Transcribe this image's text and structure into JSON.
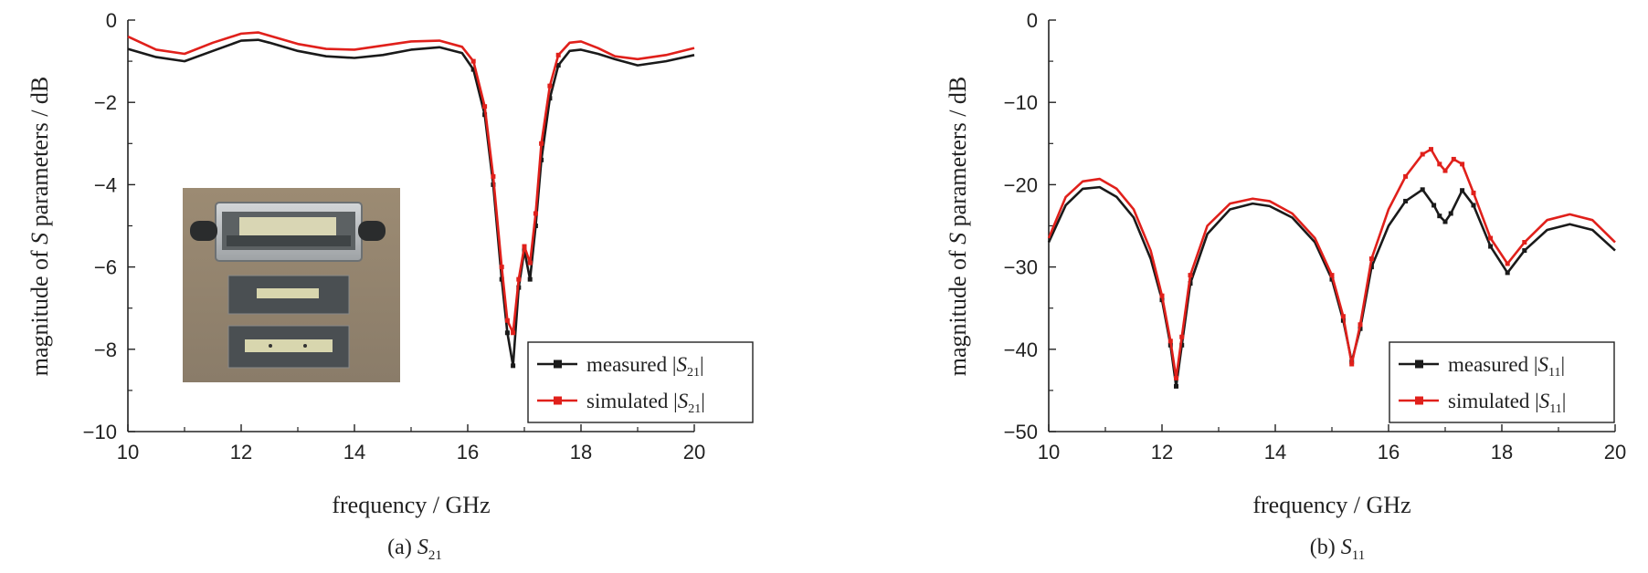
{
  "chart_data": [
    {
      "type": "line",
      "caption_prefix": "(a) ",
      "caption_symbol": "S",
      "caption_sub": "21",
      "xlabel": "frequency / GHz",
      "ylabel_prefix": "magnitude of ",
      "ylabel_symbol": "S",
      "ylabel_suffix": " parameters / dB",
      "xlim": [
        10,
        20
      ],
      "ylim": [
        -10,
        0
      ],
      "xticks": [
        10,
        12,
        14,
        16,
        18,
        20
      ],
      "yticks": [
        0,
        -2,
        -4,
        -6,
        -8,
        -10
      ],
      "legend_position": "bottom-right",
      "inset_photo": true,
      "series": [
        {
          "name": "measured |S21|",
          "name_prefix": "measured |",
          "name_symbol": "S",
          "name_sub": "21",
          "name_suffix": "|",
          "color": "#1a1a1a",
          "x": [
            10.0,
            10.5,
            11.0,
            11.5,
            12.0,
            12.3,
            12.5,
            13.0,
            13.5,
            14.0,
            14.5,
            15.0,
            15.5,
            15.9,
            16.1,
            16.3,
            16.45,
            16.6,
            16.7,
            16.8,
            16.9,
            17.0,
            17.1,
            17.2,
            17.3,
            17.45,
            17.6,
            17.8,
            18.0,
            18.3,
            18.6,
            19.0,
            19.5,
            20.0
          ],
          "y": [
            -0.7,
            -0.9,
            -1.0,
            -0.75,
            -0.5,
            -0.48,
            -0.55,
            -0.75,
            -0.88,
            -0.92,
            -0.85,
            -0.72,
            -0.66,
            -0.8,
            -1.2,
            -2.3,
            -4.0,
            -6.3,
            -7.6,
            -8.4,
            -6.5,
            -5.6,
            -6.3,
            -5.0,
            -3.4,
            -1.9,
            -1.1,
            -0.75,
            -0.72,
            -0.82,
            -0.95,
            -1.1,
            -1.0,
            -0.85
          ]
        },
        {
          "name": "simulated |S21|",
          "name_prefix": "simulated |",
          "name_symbol": "S",
          "name_sub": "21",
          "name_suffix": "|",
          "color": "#e0201b",
          "x": [
            10.0,
            10.5,
            11.0,
            11.5,
            12.0,
            12.3,
            12.5,
            13.0,
            13.5,
            14.0,
            14.5,
            15.0,
            15.5,
            15.9,
            16.1,
            16.3,
            16.45,
            16.6,
            16.7,
            16.8,
            16.9,
            17.0,
            17.1,
            17.2,
            17.3,
            17.45,
            17.6,
            17.8,
            18.0,
            18.3,
            18.6,
            19.0,
            19.5,
            20.0
          ],
          "y": [
            -0.4,
            -0.72,
            -0.82,
            -0.55,
            -0.33,
            -0.3,
            -0.38,
            -0.58,
            -0.7,
            -0.72,
            -0.62,
            -0.52,
            -0.5,
            -0.65,
            -1.0,
            -2.1,
            -3.8,
            -6.0,
            -7.3,
            -7.6,
            -6.3,
            -5.5,
            -5.9,
            -4.7,
            -3.0,
            -1.6,
            -0.85,
            -0.55,
            -0.52,
            -0.68,
            -0.88,
            -0.95,
            -0.85,
            -0.68
          ]
        }
      ]
    },
    {
      "type": "line",
      "caption_prefix": "(b) ",
      "caption_symbol": "S",
      "caption_sub": "11",
      "xlabel": "frequency / GHz",
      "ylabel_prefix": "magnitude of ",
      "ylabel_symbol": "S",
      "ylabel_suffix": " parameters / dB",
      "xlim": [
        10,
        20
      ],
      "ylim": [
        -50,
        0
      ],
      "xticks": [
        10,
        12,
        14,
        16,
        18,
        20
      ],
      "yticks": [
        0,
        -10,
        -20,
        -30,
        -40,
        -50
      ],
      "legend_position": "bottom-right",
      "series": [
        {
          "name": "measured |S11|",
          "name_prefix": "measured |",
          "name_symbol": "S",
          "name_sub": "11",
          "name_suffix": "|",
          "color": "#1a1a1a",
          "x": [
            10.0,
            10.3,
            10.6,
            10.9,
            11.2,
            11.5,
            11.8,
            12.0,
            12.15,
            12.25,
            12.35,
            12.5,
            12.8,
            13.2,
            13.6,
            13.9,
            14.3,
            14.7,
            15.0,
            15.2,
            15.35,
            15.5,
            15.7,
            16.0,
            16.3,
            16.6,
            16.8,
            16.9,
            17.0,
            17.1,
            17.3,
            17.5,
            17.8,
            18.1,
            18.4,
            18.8,
            19.2,
            19.6,
            20.0
          ],
          "y": [
            -27.0,
            -22.5,
            -20.5,
            -20.3,
            -21.5,
            -24.0,
            -29.0,
            -34.0,
            -39.5,
            -44.5,
            -39.5,
            -32.0,
            -26.0,
            -23.0,
            -22.3,
            -22.6,
            -24.0,
            -27.0,
            -31.5,
            -36.5,
            -41.5,
            -37.5,
            -30.0,
            -25.0,
            -22.0,
            -20.6,
            -22.5,
            -23.8,
            -24.5,
            -23.5,
            -20.7,
            -22.5,
            -27.5,
            -30.7,
            -28.0,
            -25.5,
            -24.8,
            -25.5,
            -28.0
          ]
        },
        {
          "name": "simulated |S11|",
          "name_prefix": "simulated |",
          "name_symbol": "S",
          "name_sub": "11",
          "name_suffix": "|",
          "color": "#e0201b",
          "x": [
            10.0,
            10.3,
            10.6,
            10.9,
            11.2,
            11.5,
            11.8,
            12.0,
            12.15,
            12.25,
            12.35,
            12.5,
            12.8,
            13.2,
            13.6,
            13.9,
            14.3,
            14.7,
            15.0,
            15.2,
            15.35,
            15.5,
            15.7,
            16.0,
            16.3,
            16.6,
            16.75,
            16.9,
            17.0,
            17.15,
            17.3,
            17.5,
            17.8,
            18.1,
            18.4,
            18.8,
            19.2,
            19.6,
            20.0
          ],
          "y": [
            -26.5,
            -21.5,
            -19.6,
            -19.3,
            -20.5,
            -23.0,
            -28.0,
            -33.5,
            -39.0,
            -43.5,
            -38.5,
            -31.0,
            -25.0,
            -22.3,
            -21.7,
            -22.0,
            -23.5,
            -26.5,
            -31.0,
            -36.0,
            -41.8,
            -37.0,
            -29.0,
            -23.0,
            -19.0,
            -16.3,
            -15.7,
            -17.5,
            -18.3,
            -16.9,
            -17.5,
            -21.0,
            -26.5,
            -29.6,
            -27.0,
            -24.3,
            -23.6,
            -24.3,
            -27.0
          ]
        }
      ]
    }
  ]
}
